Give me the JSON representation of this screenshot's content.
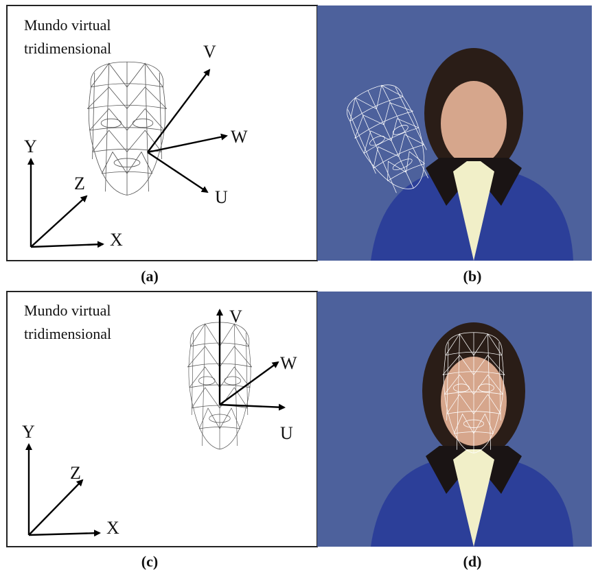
{
  "panels": [
    {
      "caption": "(a)",
      "title_lines": [
        "Mundo virtual",
        "tridimensional"
      ],
      "world_axes": [
        "Y",
        "Z",
        "X"
      ],
      "object_axes": [
        "V",
        "W",
        "U"
      ]
    },
    {
      "caption": "(b)"
    },
    {
      "caption": "(c)",
      "title_lines": [
        "Mundo virtual",
        "tridimensional"
      ],
      "world_axes": [
        "Y",
        "Z",
        "X"
      ],
      "object_axes": [
        "V",
        "W",
        "U"
      ]
    },
    {
      "caption": "(d)"
    }
  ]
}
